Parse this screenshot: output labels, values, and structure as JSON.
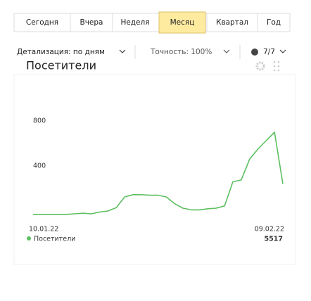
{
  "toolbar": {
    "periods": [
      "Сегодня",
      "Вчера",
      "Неделя",
      "Месяц",
      "Квартал",
      "Год"
    ],
    "active_period": "Месяц",
    "detail": "Детализация: по дням",
    "accuracy": "Точность: 100%",
    "days": "7/7"
  },
  "chart_data": {
    "type": "line",
    "title": "Посетители",
    "categories": [
      "10.01.22",
      null,
      null,
      null,
      null,
      null,
      null,
      null,
      null,
      null,
      null,
      null,
      null,
      null,
      null,
      null,
      null,
      null,
      null,
      null,
      null,
      null,
      null,
      null,
      null,
      null,
      null,
      null,
      null,
      null,
      "09.02.22"
    ],
    "series": [
      {
        "name": "Посетители",
        "color": "#5cbf60",
        "values": [
          20,
          20,
          20,
          20,
          20,
          25,
          30,
          25,
          40,
          50,
          80,
          175,
          195,
          195,
          190,
          190,
          175,
          115,
          75,
          60,
          60,
          70,
          75,
          95,
          310,
          325,
          510,
          600,
          675,
          750,
          290
        ]
      }
    ],
    "total": 5517,
    "ylim": [
      0,
      900
    ],
    "yticks": [
      400,
      800
    ],
    "grid": false
  }
}
